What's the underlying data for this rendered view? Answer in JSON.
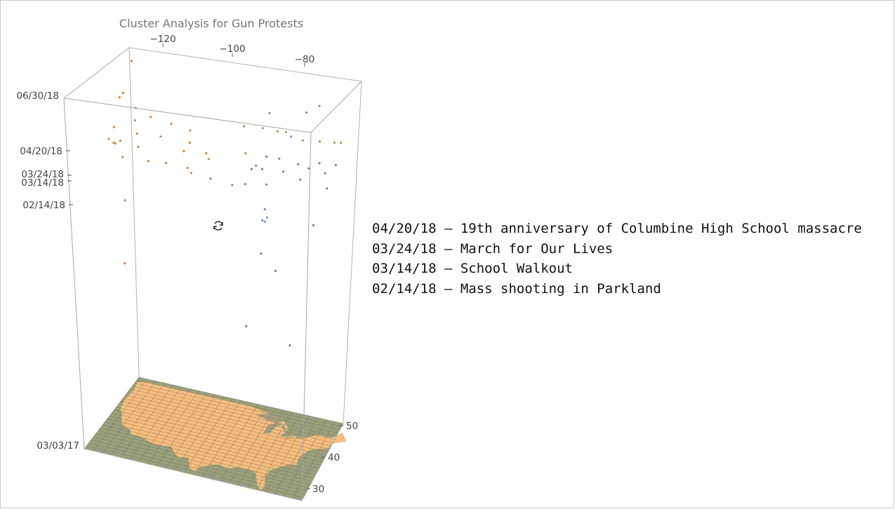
{
  "chart_data": {
    "type": "scatter",
    "title": "Cluster Analysis for Gun Protests",
    "xlabel": "",
    "ylabel": "",
    "zlabel": "",
    "x_ticks": [
      "−120",
      "−100",
      "−80"
    ],
    "y_ticks": [
      "50",
      "40",
      "30"
    ],
    "z_ticks": [
      "06/30/18",
      "04/20/18",
      "03/24/18",
      "03/14/18",
      "02/14/18",
      "03/03/17"
    ],
    "xlim": [
      -125,
      -70
    ],
    "ylim": [
      25,
      50
    ],
    "zlim": [
      "03/03/17",
      "06/30/18"
    ],
    "grid": true,
    "base_map": "contiguous United States",
    "colors": {
      "west": "#d9823b",
      "east": "#6f93c4",
      "central": "#8b73ad",
      "northeast": "#93a64b",
      "land": "#f6bd7c",
      "water": "#9aa07a"
    },
    "series": [
      {
        "color": "#d9823b",
        "points": [
          [
            -123,
            40,
            "04/08/18"
          ],
          [
            -122.5,
            37,
            "04/01/18"
          ],
          [
            -122,
            38,
            "03/24/18"
          ],
          [
            -121,
            37,
            "03/27/18"
          ],
          [
            -122,
            47,
            "04/15/18"
          ],
          [
            -121,
            45,
            "04/04/18"
          ],
          [
            -120,
            44,
            "03/20/18"
          ],
          [
            -118,
            34,
            "04/12/18"
          ],
          [
            -117,
            33,
            "03/24/18"
          ],
          [
            -116,
            43,
            "04/20/18"
          ],
          [
            -115,
            36,
            "03/31/18"
          ],
          [
            -112,
            40,
            "04/05/18"
          ],
          [
            -111,
            33,
            "03/24/18"
          ],
          [
            -110,
            41,
            "04/22/18"
          ],
          [
            -108,
            35,
            "03/18/18"
          ],
          [
            -106,
            39,
            "03/24/18"
          ],
          [
            -105,
            40,
            "04/20/18"
          ],
          [
            -104,
            38,
            "04/10/18"
          ],
          [
            -103,
            35,
            "03/16/18"
          ],
          [
            -100,
            31,
            "03/24/18"
          ],
          [
            -98,
            35,
            "04/02/18"
          ],
          [
            -97,
            32,
            "04/20/18"
          ],
          [
            -123,
            44,
            "05/15/18"
          ],
          [
            -119,
            36,
            "06/05/18"
          ],
          [
            -121,
            39,
            "10/01/17"
          ],
          [
            -118,
            35,
            "01/15/18"
          ],
          [
            -122,
            46,
            "06/25/18"
          ]
        ]
      },
      {
        "color": "#6f93c4",
        "points": [
          [
            -87,
            30,
            "03/24/18"
          ],
          [
            -84,
            34,
            "03/14/18"
          ],
          [
            -82,
            28,
            "02/14/18"
          ],
          [
            -80.5,
            26,
            "02/20/18"
          ],
          [
            -80,
            26,
            "02/26/18"
          ],
          [
            -81,
            27,
            "03/05/18"
          ],
          [
            -86,
            33,
            "04/10/18"
          ],
          [
            -79,
            35,
            "05/20/18"
          ],
          [
            -77,
            38,
            "06/15/18"
          ],
          [
            -85,
            37,
            "06/10/18"
          ],
          [
            -75,
            40,
            "06/20/18"
          ],
          [
            -90,
            30,
            "03/20/18"
          ]
        ]
      },
      {
        "color": "#8b73ad",
        "points": [
          [
            -95,
            30,
            "03/24/18"
          ],
          [
            -90,
            39,
            "03/14/18"
          ],
          [
            -88,
            42,
            "03/24/18"
          ],
          [
            -87,
            38,
            "03/20/18"
          ],
          [
            -85,
            42,
            "03/24/18"
          ],
          [
            -83,
            40,
            "03/14/18"
          ],
          [
            -80,
            41,
            "03/24/18"
          ],
          [
            -78,
            38,
            "03/14/18"
          ],
          [
            -77,
            40,
            "03/24/18"
          ],
          [
            -75,
            41,
            "03/30/18"
          ],
          [
            -74,
            42,
            "03/14/18"
          ],
          [
            -72,
            43,
            "03/24/18"
          ],
          [
            -73,
            41,
            "02/25/18"
          ],
          [
            -82,
            35,
            "11/15/17"
          ],
          [
            -79,
            37,
            "08/01/17"
          ],
          [
            -86,
            36,
            "12/01/17"
          ],
          [
            -88,
            33,
            "09/01/17"
          ],
          [
            -75,
            39,
            "01/10/18"
          ]
        ]
      },
      {
        "color": "#93a64b",
        "points": [
          [
            -95,
            45,
            "04/20/18"
          ],
          [
            -90,
            44,
            "04/25/18"
          ],
          [
            -87,
            45,
            "04/20/18"
          ],
          [
            -84,
            43,
            "04/28/18"
          ],
          [
            -80,
            43,
            "04/20/18"
          ],
          [
            -76,
            43,
            "04/22/18"
          ],
          [
            -73,
            44,
            "04/20/18"
          ],
          [
            -71,
            43,
            "04/25/18"
          ],
          [
            -93,
            42,
            "03/24/18"
          ]
        ]
      }
    ],
    "annotations": [
      "04/20/18 – 19th anniversary of Columbine High School massacre",
      "03/24/18 – March for Our Lives",
      "03/14/18 – School Walkout",
      "02/14/18 – Mass shooting in Parkland"
    ]
  }
}
